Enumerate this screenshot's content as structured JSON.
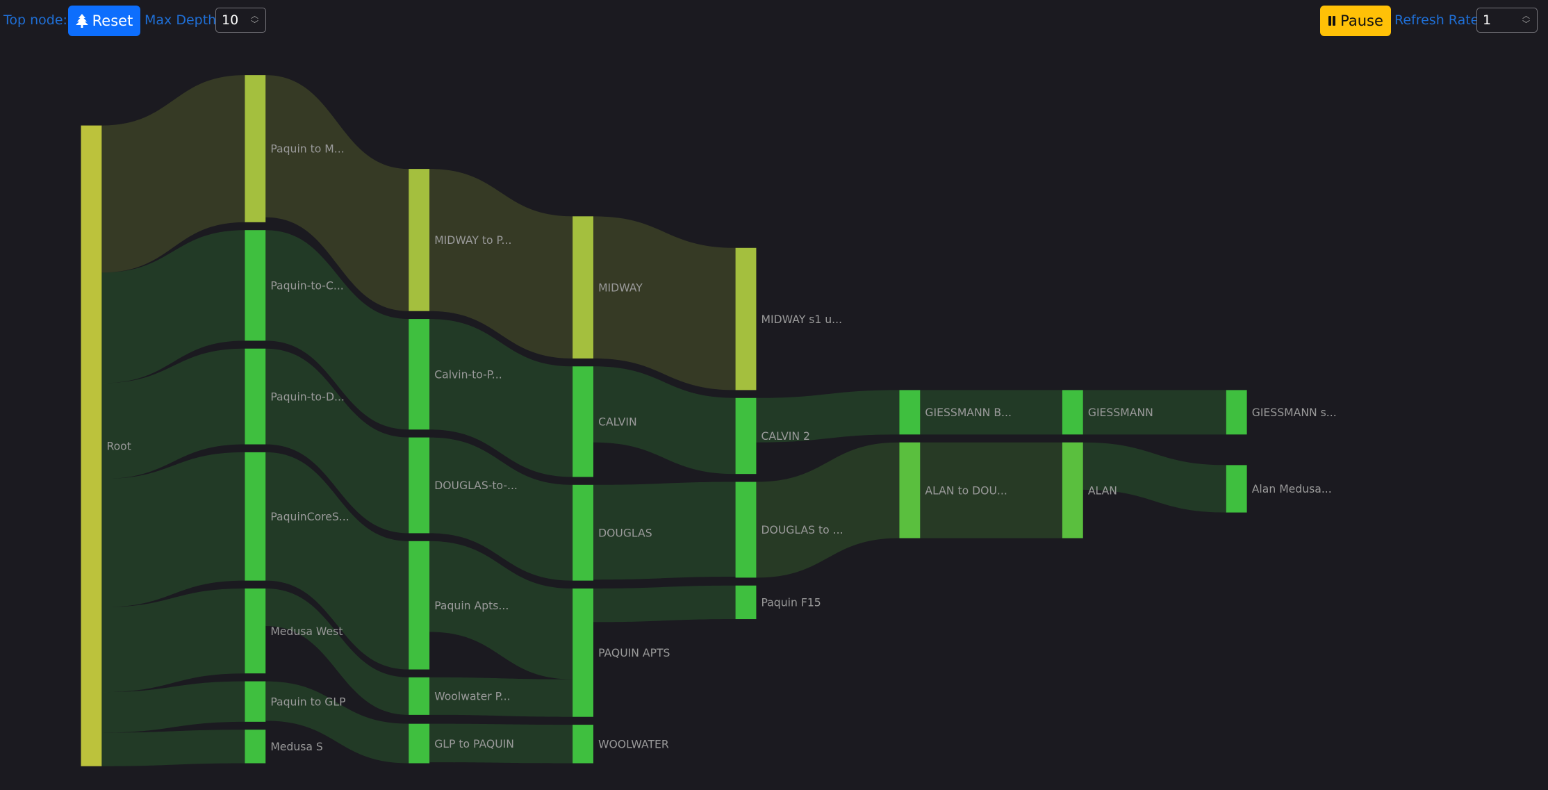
{
  "toolbar": {
    "top_node_label": "Top node::",
    "reset_label": "Reset",
    "reset_icon": "tree-icon",
    "max_depth_label": "Max Depth:",
    "max_depth_value": "10",
    "pause_label": "Pause",
    "pause_icon": "pause-icon",
    "refresh_rate_label": "Refresh Rate:",
    "refresh_rate_value": "1",
    "colors": {
      "reset": "#0d6efd",
      "pause": "#ffc107",
      "label": "#1f6fd6"
    }
  },
  "sankey": {
    "nodes": [
      {
        "id": "root",
        "label": "Root",
        "color": "#bcc23c"
      },
      {
        "id": "pm",
        "label": "Paquin to M...",
        "color": "#a4bf3e"
      },
      {
        "id": "pc",
        "label": "Paquin-to-C...",
        "color": "#3fbf3f"
      },
      {
        "id": "pd",
        "label": "Paquin-to-D...",
        "color": "#3fbf3f"
      },
      {
        "id": "pcs",
        "label": "PaquinCoreS...",
        "color": "#3fbf3f"
      },
      {
        "id": "mw",
        "label": "Medusa West",
        "color": "#3fbf3f"
      },
      {
        "id": "pglp",
        "label": "Paquin to GLP",
        "color": "#3fbf3f"
      },
      {
        "id": "ms",
        "label": "Medusa S",
        "color": "#3fbf3f"
      },
      {
        "id": "mtp",
        "label": "MIDWAY to P...",
        "color": "#a4bf3e"
      },
      {
        "id": "ctp",
        "label": "Calvin-to-P...",
        "color": "#3fbf3f"
      },
      {
        "id": "dtp",
        "label": "DOUGLAS-to-...",
        "color": "#3fbf3f"
      },
      {
        "id": "pa",
        "label": "Paquin Apts...",
        "color": "#3fbf3f"
      },
      {
        "id": "wp",
        "label": "Woolwater P...",
        "color": "#3fbf3f"
      },
      {
        "id": "glpp",
        "label": "GLP to PAQUIN",
        "color": "#3fbf3f"
      },
      {
        "id": "midway",
        "label": "MIDWAY",
        "color": "#a4bf3e"
      },
      {
        "id": "calvin",
        "label": "CALVIN",
        "color": "#3fbf3f"
      },
      {
        "id": "douglas",
        "label": "DOUGLAS",
        "color": "#3fbf3f"
      },
      {
        "id": "paquinapts",
        "label": "PAQUIN APTS",
        "color": "#3fbf3f"
      },
      {
        "id": "woolwater",
        "label": "WOOLWATER",
        "color": "#3fbf3f"
      },
      {
        "id": "ms1",
        "label": "MIDWAY s1 u...",
        "color": "#a4bf3e"
      },
      {
        "id": "calvin2",
        "label": "CALVIN 2",
        "color": "#3fbf3f"
      },
      {
        "id": "dto",
        "label": "DOUGLAS to ...",
        "color": "#3fbf3f"
      },
      {
        "id": "pf15",
        "label": "Paquin F15",
        "color": "#3fbf3f"
      },
      {
        "id": "gb",
        "label": "GIESSMANN B...",
        "color": "#3fbf3f"
      },
      {
        "id": "atd",
        "label": "ALAN to DOU...",
        "color": "#5abf3e"
      },
      {
        "id": "giess",
        "label": "GIESSMANN",
        "color": "#3fbf3f"
      },
      {
        "id": "alan",
        "label": "ALAN",
        "color": "#5abf3e"
      },
      {
        "id": "gs",
        "label": "GIESSMANN s...",
        "color": "#3fbf3f"
      },
      {
        "id": "am",
        "label": "Alan Medusa...",
        "color": "#3fbf3f"
      }
    ],
    "links": [
      {
        "source": "root",
        "target": "pm",
        "value": 149
      },
      {
        "source": "root",
        "target": "pc",
        "value": 112
      },
      {
        "source": "root",
        "target": "pd",
        "value": 97
      },
      {
        "source": "root",
        "target": "pcs",
        "value": 130
      },
      {
        "source": "root",
        "target": "mw",
        "value": 86
      },
      {
        "source": "root",
        "target": "pglp",
        "value": 41
      },
      {
        "source": "root",
        "target": "ms",
        "value": 34
      },
      {
        "source": "pm",
        "target": "mtp",
        "value": 144
      },
      {
        "source": "pc",
        "target": "ctp",
        "value": 112
      },
      {
        "source": "pd",
        "target": "dtp",
        "value": 97
      },
      {
        "source": "pcs",
        "target": "pa",
        "value": 130
      },
      {
        "source": "mw",
        "target": "wp",
        "value": 38
      },
      {
        "source": "pglp",
        "target": "glpp",
        "value": 40
      },
      {
        "source": "mtp",
        "target": "midway",
        "value": 144
      },
      {
        "source": "ctp",
        "target": "calvin",
        "value": 112
      },
      {
        "source": "dtp",
        "target": "douglas",
        "value": 97
      },
      {
        "source": "pa",
        "target": "paquinapts",
        "value": 92
      },
      {
        "source": "wp",
        "target": "paquinapts",
        "value": 38
      },
      {
        "source": "glpp",
        "target": "woolwater",
        "value": 39
      },
      {
        "source": "midway",
        "target": "ms1",
        "value": 144
      },
      {
        "source": "calvin",
        "target": "calvin2",
        "value": 77
      },
      {
        "source": "douglas",
        "target": "dto",
        "value": 96
      },
      {
        "source": "paquinapts",
        "target": "pf15",
        "value": 34
      },
      {
        "source": "calvin2",
        "target": "gb",
        "value": 45
      },
      {
        "source": "dto",
        "target": "atd",
        "value": 97
      },
      {
        "source": "gb",
        "target": "giess",
        "value": 45
      },
      {
        "source": "atd",
        "target": "alan",
        "value": 97
      },
      {
        "source": "giess",
        "target": "gs",
        "value": 45
      },
      {
        "source": "alan",
        "target": "am",
        "value": 48
      }
    ]
  }
}
